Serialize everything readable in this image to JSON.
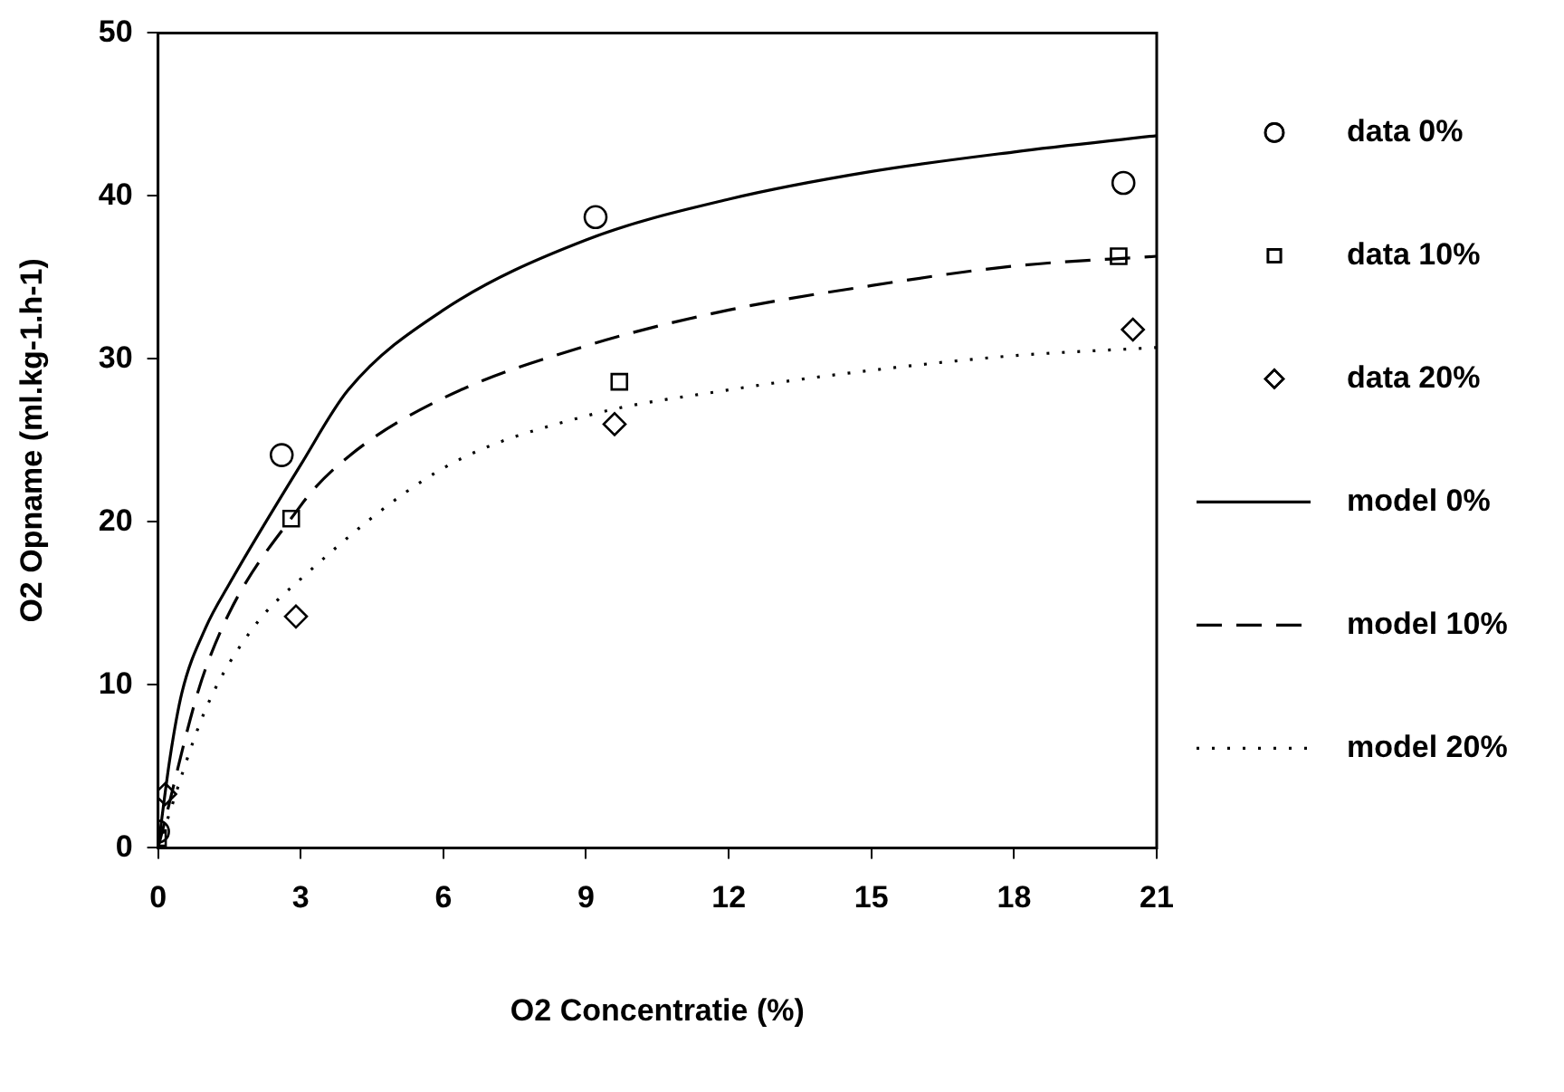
{
  "chart_data": {
    "type": "scatter",
    "xlabel": "O2 Concentratie (%)",
    "ylabel": "O2 Opname (ml.kg-1.h-1)",
    "xlim": [
      0,
      21
    ],
    "xticks": [
      0,
      3,
      6,
      9,
      12,
      15,
      18,
      21
    ],
    "ylim": [
      0,
      50
    ],
    "yticks": [
      0,
      10,
      20,
      30,
      40,
      50
    ],
    "grid": false,
    "legend": "right",
    "series": [
      {
        "name": "data 0%",
        "marker": "circle",
        "color": "#000000",
        "x": [
          0,
          2.6,
          9.2,
          20.3
        ],
        "values": [
          1.0,
          24.1,
          38.7,
          40.8
        ]
      },
      {
        "name": "data 10%",
        "marker": "square",
        "color": "#000000",
        "x": [
          0,
          2.8,
          9.7,
          20.2
        ],
        "values": [
          0.6,
          20.2,
          28.6,
          36.3
        ]
      },
      {
        "name": "data 20%",
        "marker": "diamond",
        "color": "#000000",
        "x": [
          0.15,
          2.9,
          9.6,
          20.5
        ],
        "values": [
          3.3,
          14.2,
          26.0,
          31.8
        ]
      },
      {
        "name": "model 0%",
        "type": "line",
        "line_style": "solid",
        "marker": "none",
        "color": "#000000",
        "x": [
          0,
          0.25,
          0.5,
          1,
          1.5,
          3,
          4,
          6,
          9,
          12,
          15,
          18,
          21
        ],
        "values": [
          0,
          5.5,
          9.5,
          13.5,
          16.2,
          23.5,
          28.1,
          33,
          37.3,
          39.8,
          41.5,
          42.7,
          43.7
        ]
      },
      {
        "name": "model 10%",
        "type": "line",
        "line_style": "dashed",
        "marker": "none",
        "color": "#000000",
        "x": [
          0,
          1,
          3,
          4,
          6,
          9,
          12,
          15,
          18,
          21
        ],
        "values": [
          0,
          11,
          21,
          24,
          27.6,
          30.8,
          33,
          34.5,
          35.7,
          36.3
        ]
      },
      {
        "name": "model 20%",
        "type": "line",
        "line_style": "dotted",
        "marker": "none",
        "color": "#000000",
        "x": [
          0,
          1,
          2,
          3,
          6,
          9,
          12,
          15,
          18,
          21
        ],
        "values": [
          0,
          8.5,
          13.5,
          16.5,
          23.3,
          26.5,
          28.1,
          29.3,
          30.2,
          30.7
        ]
      }
    ]
  }
}
